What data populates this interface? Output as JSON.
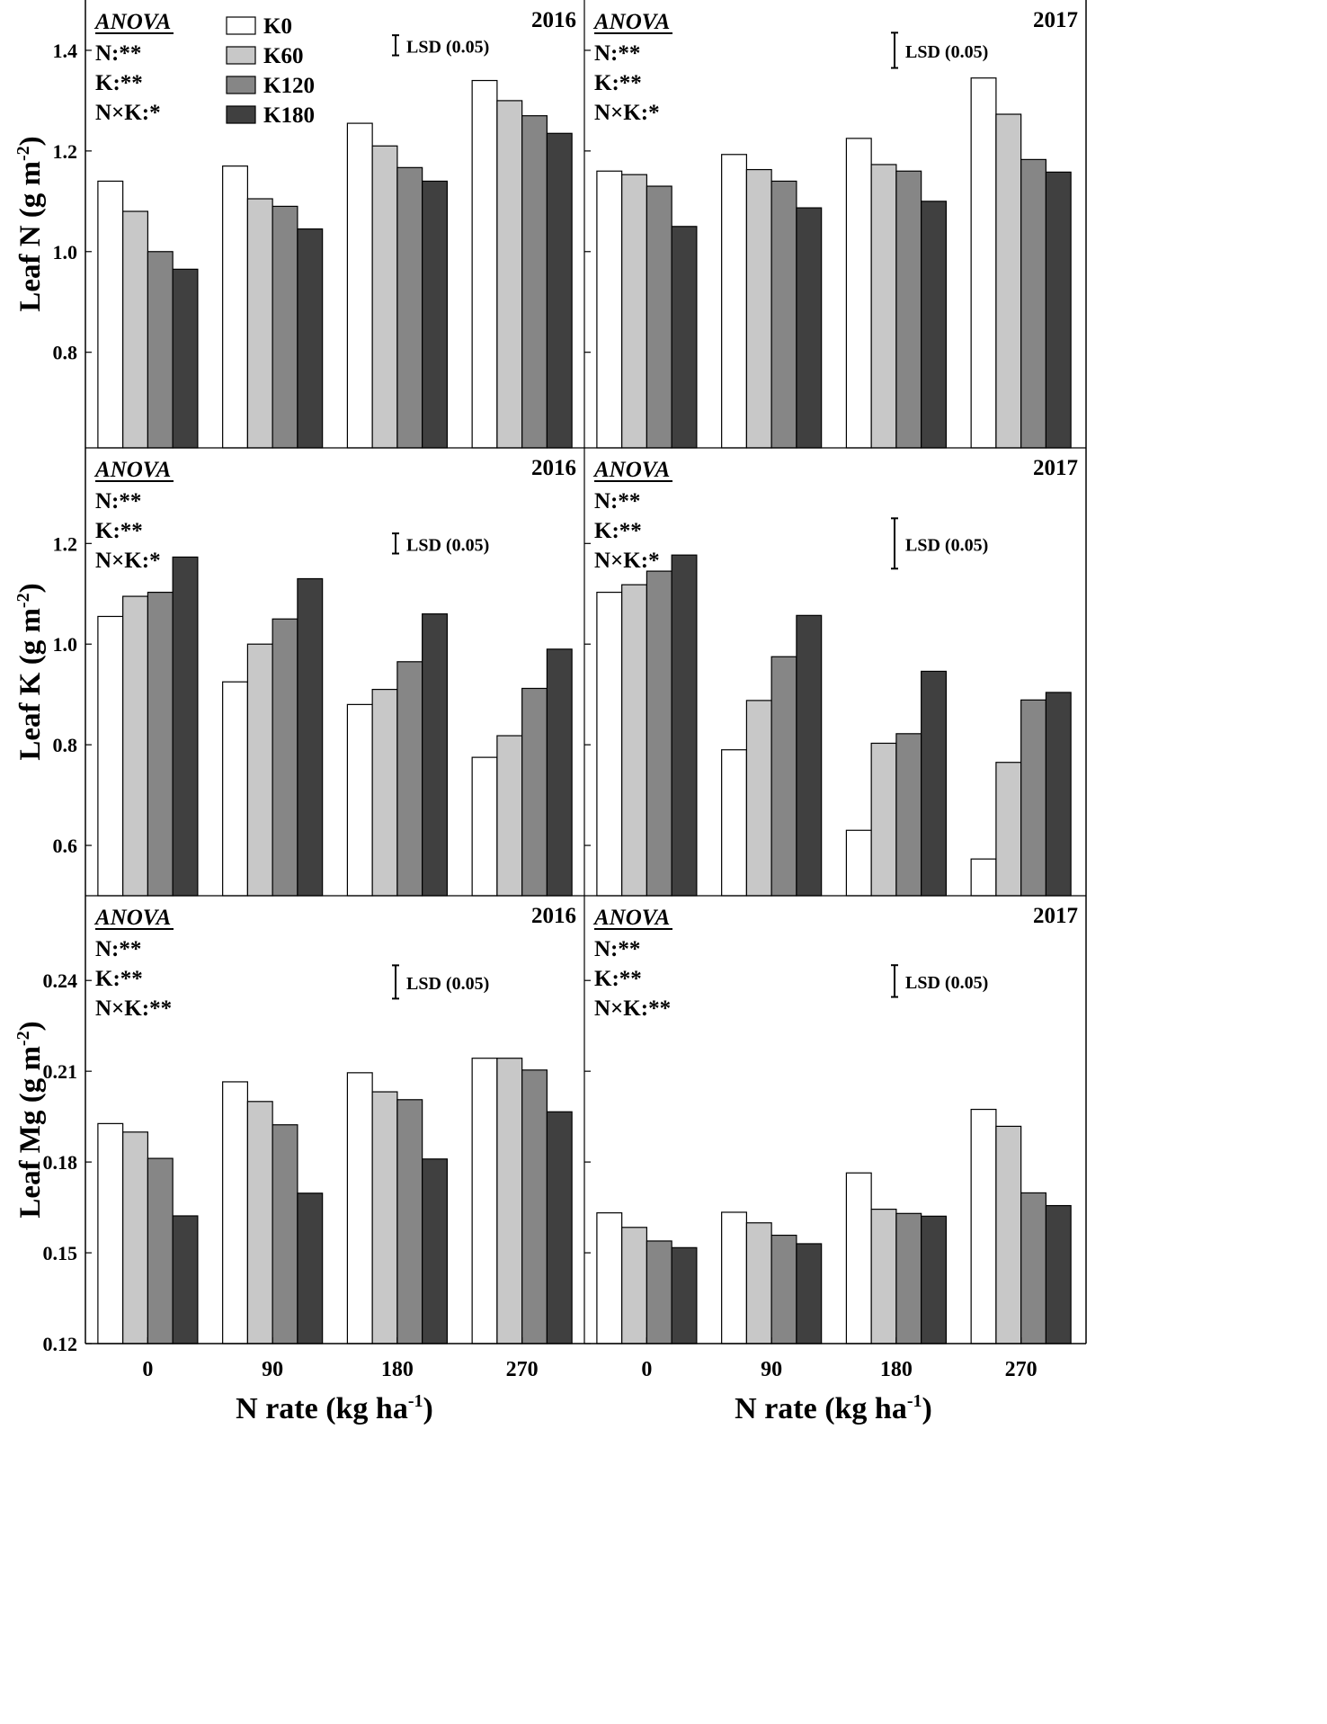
{
  "chart_data": {
    "type": "bar",
    "title": "",
    "xlabel": "N rate (kg ha",
    "xlabel_sup": "-1",
    "xlabel_close": ")",
    "categories": [
      "0",
      "90",
      "180",
      "270"
    ],
    "legend": {
      "placement": "top-left",
      "entries": [
        "K0",
        "K60",
        "K120",
        "K180"
      ],
      "colors": [
        "#ffffff",
        "#c8c8c8",
        "#868686",
        "#404040"
      ]
    },
    "anova_heading": "ANOVA",
    "lsd_label": "LSD (0.05)",
    "rows": [
      {
        "ylabel_main": "Leaf N (g m",
        "ylabel_sup": "-2",
        "ylabel_close": ")",
        "ylim": [
          0.61,
          1.5
        ],
        "yticks": [
          "0.8",
          "1.0",
          "1.2",
          "1.4"
        ],
        "ytick_values": [
          0.8,
          1.0,
          1.2,
          1.4
        ],
        "panels": [
          {
            "year": "2016",
            "anova": [
              "N:**",
              "K:**",
              "N×K:*"
            ],
            "lsd": 0.04,
            "lsd_center": 1.41,
            "series": [
              {
                "name": "K0",
                "values": [
                  1.14,
                  1.17,
                  1.255,
                  1.34
                ]
              },
              {
                "name": "K60",
                "values": [
                  1.08,
                  1.105,
                  1.21,
                  1.3
                ]
              },
              {
                "name": "K120",
                "values": [
                  1.0,
                  1.09,
                  1.167,
                  1.27
                ]
              },
              {
                "name": "K180",
                "values": [
                  0.965,
                  1.045,
                  1.14,
                  1.235
                ]
              }
            ]
          },
          {
            "year": "2017",
            "anova": [
              "N:**",
              "K:**",
              "N×K:*"
            ],
            "lsd": 0.07,
            "lsd_center": 1.4,
            "series": [
              {
                "name": "K0",
                "values": [
                  1.16,
                  1.193,
                  1.225,
                  1.345
                ]
              },
              {
                "name": "K60",
                "values": [
                  1.153,
                  1.163,
                  1.173,
                  1.273
                ]
              },
              {
                "name": "K120",
                "values": [
                  1.13,
                  1.14,
                  1.16,
                  1.183
                ]
              },
              {
                "name": "K180",
                "values": [
                  1.05,
                  1.087,
                  1.1,
                  1.158
                ]
              }
            ]
          }
        ]
      },
      {
        "ylabel_main": "Leaf K (g m",
        "ylabel_sup": "-2",
        "ylabel_close": ")",
        "ylim": [
          0.5,
          1.39
        ],
        "yticks": [
          "0.6",
          "0.8",
          "1.0",
          "1.2"
        ],
        "ytick_values": [
          0.6,
          0.8,
          1.0,
          1.2
        ],
        "panels": [
          {
            "year": "2016",
            "anova": [
              "N:**",
              "K:**",
              "N×K:*"
            ],
            "lsd": 0.04,
            "lsd_center": 1.2,
            "series": [
              {
                "name": "K0",
                "values": [
                  1.055,
                  0.925,
                  0.88,
                  0.775
                ]
              },
              {
                "name": "K60",
                "values": [
                  1.095,
                  1.0,
                  0.91,
                  0.818
                ]
              },
              {
                "name": "K120",
                "values": [
                  1.103,
                  1.05,
                  0.965,
                  0.912
                ]
              },
              {
                "name": "K180",
                "values": [
                  1.173,
                  1.13,
                  1.06,
                  0.99
                ]
              }
            ]
          },
          {
            "year": "2017",
            "anova": [
              "N:**",
              "K:**",
              "N×K:*"
            ],
            "lsd": 0.1,
            "lsd_center": 1.2,
            "series": [
              {
                "name": "K0",
                "values": [
                  1.103,
                  0.79,
                  0.63,
                  0.573
                ]
              },
              {
                "name": "K60",
                "values": [
                  1.118,
                  0.888,
                  0.803,
                  0.765
                ]
              },
              {
                "name": "K120",
                "values": [
                  1.145,
                  0.975,
                  0.822,
                  0.889
                ]
              },
              {
                "name": "K180",
                "values": [
                  1.177,
                  1.057,
                  0.946,
                  0.904
                ]
              }
            ]
          }
        ]
      },
      {
        "ylabel_main": "Leaf Mg (g m",
        "ylabel_sup": "-2",
        "ylabel_close": ")",
        "ylim": [
          0.12,
          0.268
        ],
        "yticks": [
          "0.12",
          "0.15",
          "0.18",
          "0.21",
          "0.24"
        ],
        "ytick_values": [
          0.12,
          0.15,
          0.18,
          0.21,
          0.24
        ],
        "panels": [
          {
            "year": "2016",
            "anova": [
              "N:**",
              "K:**",
              "N×K:**"
            ],
            "lsd": 0.011,
            "lsd_center": 0.2395,
            "series": [
              {
                "name": "K0",
                "values": [
                  0.1927,
                  0.2065,
                  0.2095,
                  0.2143
                ]
              },
              {
                "name": "K60",
                "values": [
                  0.1899,
                  0.2,
                  0.2032,
                  0.2143
                ]
              },
              {
                "name": "K120",
                "values": [
                  0.1812,
                  0.1923,
                  0.2006,
                  0.2104
                ]
              },
              {
                "name": "K180",
                "values": [
                  0.1622,
                  0.1697,
                  0.181,
                  0.1966
                ]
              }
            ]
          },
          {
            "year": "2017",
            "anova": [
              "N:**",
              "K:**",
              "N×K:**"
            ],
            "lsd": 0.0105,
            "lsd_center": 0.2398,
            "series": [
              {
                "name": "K0",
                "values": [
                  0.1632,
                  0.1634,
                  0.1764,
                  0.1974
                ]
              },
              {
                "name": "K60",
                "values": [
                  0.1584,
                  0.1599,
                  0.1644,
                  0.1918
                ]
              },
              {
                "name": "K120",
                "values": [
                  0.1539,
                  0.1558,
                  0.163,
                  0.1698
                ]
              },
              {
                "name": "K180",
                "values": [
                  0.1517,
                  0.153,
                  0.1621,
                  0.1656
                ]
              }
            ]
          }
        ]
      }
    ]
  }
}
